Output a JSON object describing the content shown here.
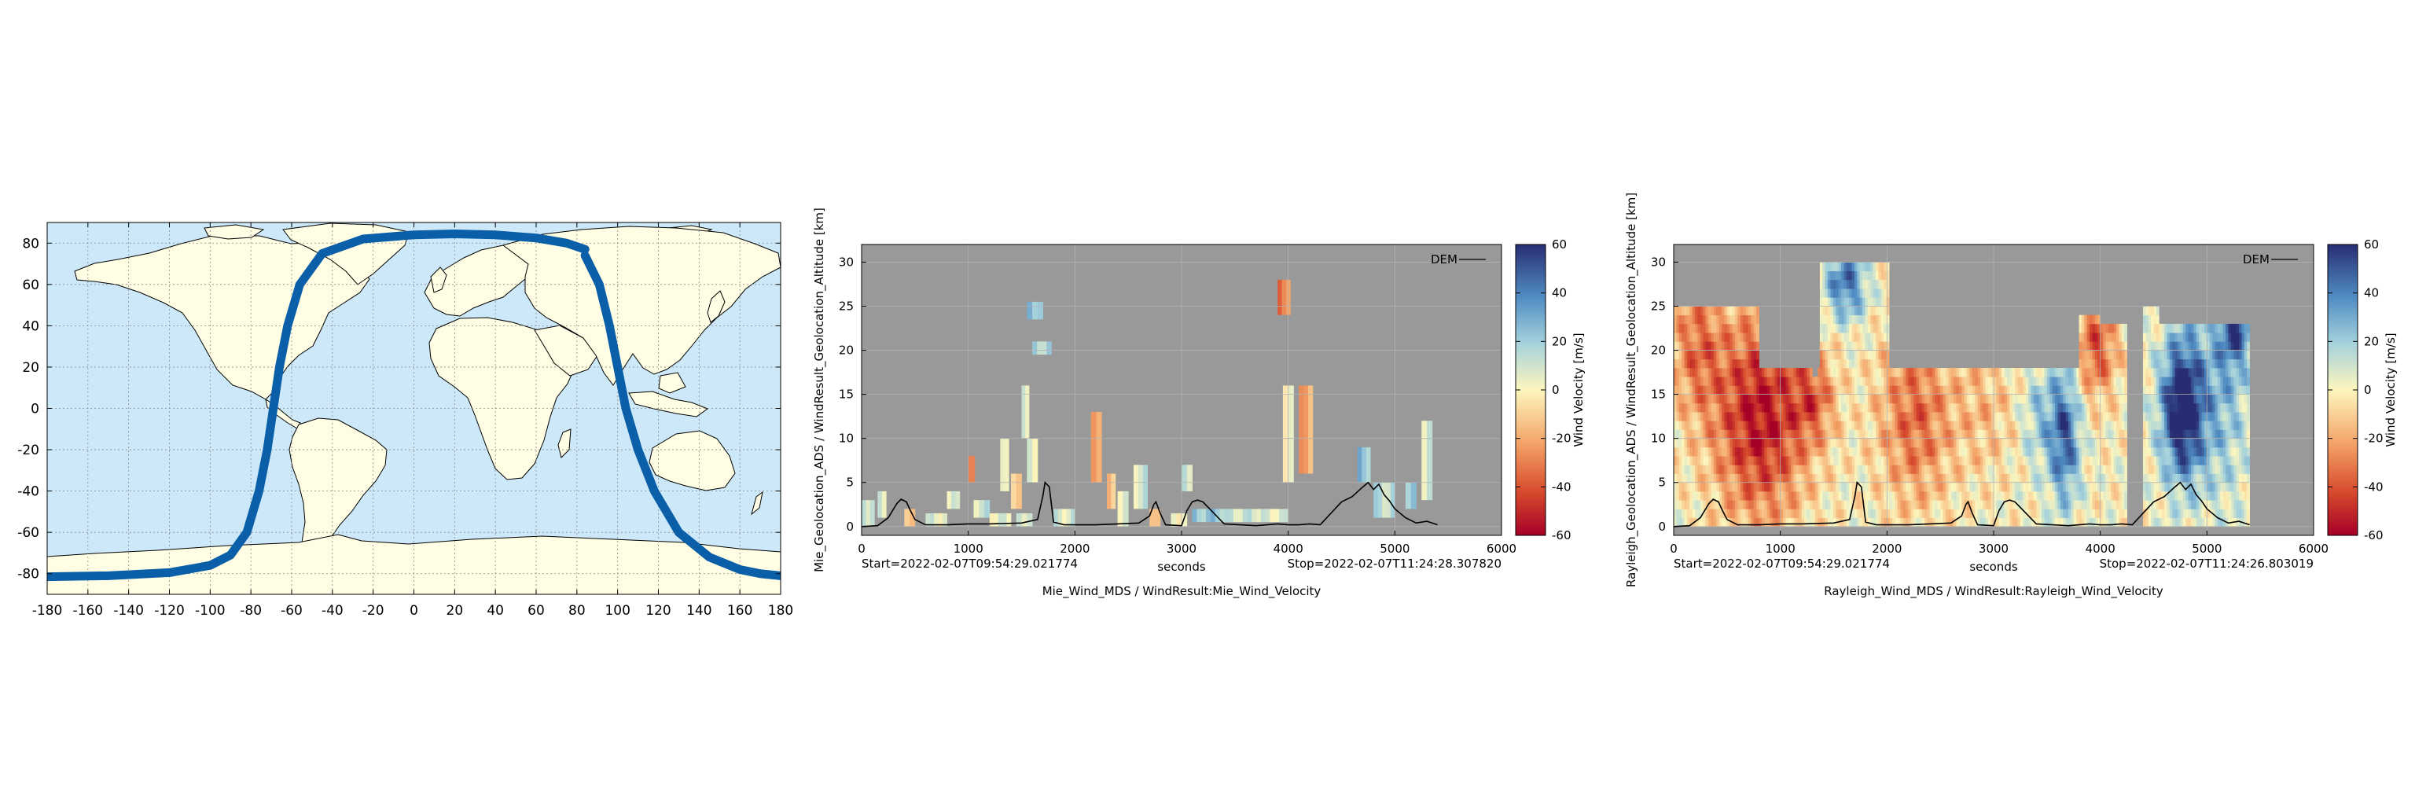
{
  "colors": {
    "ocean": "#cde9f9",
    "land": "#fffde3",
    "track": "#0a5fa8",
    "no_data": "#999999",
    "dem_line": "#000000"
  },
  "chart_data": [
    {
      "type": "scatter",
      "name": "ground-track-map",
      "title": "",
      "xlabel": "",
      "ylabel": "",
      "xlim": [
        -180,
        180
      ],
      "ylim": [
        -90,
        90
      ],
      "grid": true,
      "x_ticks": [
        -180,
        -160,
        -140,
        -120,
        -100,
        -80,
        -60,
        -40,
        -20,
        0,
        20,
        40,
        60,
        80,
        100,
        120,
        140,
        160,
        180
      ],
      "y_ticks": [
        80,
        60,
        40,
        20,
        0,
        -20,
        -40,
        -60,
        -80
      ],
      "series": [
        {
          "x": [
            -180,
            -150,
            -120,
            -100,
            -90,
            -82,
            -76,
            -72,
            -69,
            -66,
            -62,
            -56,
            -45,
            -25,
            0,
            20,
            40,
            60,
            75,
            84
          ],
          "y": [
            -81.5,
            -81,
            -79.5,
            -76,
            -71,
            -60,
            -40,
            -20,
            0,
            20,
            40,
            60,
            75,
            82,
            84,
            84.5,
            84,
            82.5,
            80,
            77
          ]
        },
        {
          "x": [
            84,
            91,
            96,
            100,
            104,
            110,
            118,
            130,
            145,
            160,
            170,
            180
          ],
          "y": [
            74,
            60,
            40,
            20,
            0,
            -20,
            -40,
            -60,
            -72,
            -78,
            -80,
            -81
          ]
        }
      ]
    },
    {
      "type": "heatmap",
      "name": "mie-wind",
      "title": "Mie_Wind_MDS / WindResult:Mie_Wind_Velocity",
      "xlabel": "seconds",
      "ylabel": "Mie_Geolocation_ADS / WindResult_Geolocation_Altitude [km]",
      "colorbar_label": "Wind Velocity [m/s]",
      "start_label": "Start=2022-02-07T09:54:29.021774",
      "stop_label": "Stop=2022-02-07T11:24:28.307820",
      "legend": "DEM",
      "xlim": [
        0,
        6000
      ],
      "ylim": [
        -1,
        32
      ],
      "x_ticks": [
        0,
        1000,
        2000,
        3000,
        4000,
        5000,
        6000
      ],
      "y_ticks": [
        0,
        5,
        10,
        15,
        20,
        25,
        30
      ],
      "clim": [
        -60,
        60
      ],
      "cbar_ticks": [
        60,
        40,
        20,
        0,
        -20,
        -40,
        -60
      ],
      "dem_x": [
        0,
        150,
        250,
        330,
        370,
        420,
        450,
        500,
        600,
        800,
        1000,
        1200,
        1500,
        1650,
        1700,
        1720,
        1760,
        1800,
        1900,
        2200,
        2400,
        2600,
        2700,
        2740,
        2760,
        2800,
        2850,
        3000,
        3050,
        3100,
        3150,
        3200,
        3400,
        3700,
        3900,
        4000,
        4100,
        4200,
        4300,
        4400,
        4500,
        4600,
        4700,
        4750,
        4800,
        4850,
        4900,
        4950,
        5000,
        5100,
        5200,
        5300,
        5400
      ],
      "dem_y": [
        0,
        0.1,
        1,
        2.6,
        3.1,
        2.8,
        2.0,
        0.8,
        0.2,
        0.2,
        0.3,
        0.3,
        0.4,
        0.8,
        3.5,
        5.0,
        4.5,
        0.5,
        0.2,
        0.2,
        0.3,
        0.4,
        1.2,
        2.5,
        2.8,
        1.5,
        0.2,
        0.1,
        1.8,
        2.8,
        3.0,
        2.8,
        0.3,
        0.1,
        0.3,
        0.2,
        0.2,
        0.3,
        0.2,
        1.5,
        2.8,
        3.4,
        4.5,
        5.0,
        4.2,
        4.8,
        3.6,
        2.9,
        2.0,
        1.0,
        0.4,
        0.6,
        0.2
      ],
      "cells": [
        {
          "t": 0,
          "z": 0,
          "dt": 120,
          "dz": 3,
          "v": 14
        },
        {
          "t": 150,
          "z": 1,
          "dt": 80,
          "dz": 3,
          "v": 8
        },
        {
          "t": 400,
          "z": 0,
          "dt": 100,
          "dz": 2,
          "v": -18
        },
        {
          "t": 600,
          "z": 0,
          "dt": 200,
          "dz": 1.5,
          "v": 6
        },
        {
          "t": 800,
          "z": 2,
          "dt": 120,
          "dz": 2,
          "v": 4
        },
        {
          "t": 1000,
          "z": 5,
          "dt": 60,
          "dz": 3,
          "v": -22
        },
        {
          "t": 1050,
          "z": 1,
          "dt": 150,
          "dz": 2,
          "v": 10
        },
        {
          "t": 1200,
          "z": 0,
          "dt": 200,
          "dz": 1.5,
          "v": 5
        },
        {
          "t": 1300,
          "z": 4,
          "dt": 80,
          "dz": 6,
          "v": 9
        },
        {
          "t": 1400,
          "z": 2,
          "dt": 100,
          "dz": 4,
          "v": -6
        },
        {
          "t": 1500,
          "z": 10,
          "dt": 70,
          "dz": 6,
          "v": 10
        },
        {
          "t": 1550,
          "z": 5,
          "dt": 100,
          "dz": 5,
          "v": 6
        },
        {
          "t": 1450,
          "z": 0,
          "dt": 150,
          "dz": 1.5,
          "v": 12
        },
        {
          "t": 1550,
          "z": 23.5,
          "dt": 150,
          "dz": 2,
          "v": 26
        },
        {
          "t": 1600,
          "z": 19.5,
          "dt": 180,
          "dz": 1.5,
          "v": 18
        },
        {
          "t": 1800,
          "z": 0,
          "dt": 200,
          "dz": 2,
          "v": 8
        },
        {
          "t": 2150,
          "z": 5,
          "dt": 100,
          "dz": 8,
          "v": -26
        },
        {
          "t": 2300,
          "z": 2,
          "dt": 80,
          "dz": 4,
          "v": -15
        },
        {
          "t": 2400,
          "z": 0,
          "dt": 100,
          "dz": 4,
          "v": 6
        },
        {
          "t": 2550,
          "z": 2,
          "dt": 130,
          "dz": 5,
          "v": 9
        },
        {
          "t": 2700,
          "z": 0,
          "dt": 100,
          "dz": 2,
          "v": -8
        },
        {
          "t": 2900,
          "z": 0,
          "dt": 150,
          "dz": 1.5,
          "v": 4
        },
        {
          "t": 3000,
          "z": 4,
          "dt": 100,
          "dz": 3,
          "v": 12
        },
        {
          "t": 3100,
          "z": 0.5,
          "dt": 300,
          "dz": 1.5,
          "v": 22
        },
        {
          "t": 3400,
          "z": 0.5,
          "dt": 300,
          "dz": 1.5,
          "v": 10
        },
        {
          "t": 3700,
          "z": 0.5,
          "dt": 300,
          "dz": 1.5,
          "v": 6
        },
        {
          "t": 3900,
          "z": 24,
          "dt": 120,
          "dz": 4,
          "v": -30
        },
        {
          "t": 3950,
          "z": 5,
          "dt": 100,
          "dz": 11,
          "v": 4
        },
        {
          "t": 4100,
          "z": 6,
          "dt": 130,
          "dz": 10,
          "v": -20
        },
        {
          "t": 4650,
          "z": 5,
          "dt": 120,
          "dz": 4,
          "v": 24
        },
        {
          "t": 4800,
          "z": 1,
          "dt": 200,
          "dz": 4,
          "v": 14
        },
        {
          "t": 5100,
          "z": 2,
          "dt": 100,
          "dz": 3,
          "v": 18
        },
        {
          "t": 5250,
          "z": 3,
          "dt": 100,
          "dz": 9,
          "v": 8
        }
      ]
    },
    {
      "type": "heatmap",
      "name": "rayleigh-wind",
      "title": "Rayleigh_Wind_MDS / WindResult:Rayleigh_Wind_Velocity",
      "xlabel": "seconds",
      "ylabel": "Rayleigh_Geolocation_ADS / WindResult_Geolocation_Altitude [km]",
      "colorbar_label": "Wind Velocity [m/s]",
      "start_label": "Start=2022-02-07T09:54:29.021774",
      "stop_label": "Stop=2022-02-07T11:24:26.803019",
      "legend": "DEM",
      "xlim": [
        0,
        6000
      ],
      "ylim": [
        -1,
        32
      ],
      "x_ticks": [
        0,
        1000,
        2000,
        3000,
        4000,
        5000,
        6000
      ],
      "y_ticks": [
        0,
        5,
        10,
        15,
        20,
        25,
        30
      ],
      "clim": [
        -60,
        60
      ],
      "cbar_ticks": [
        60,
        40,
        20,
        0,
        -20,
        -40,
        -60
      ],
      "dem_x": [
        0,
        150,
        250,
        330,
        370,
        420,
        450,
        500,
        600,
        800,
        1000,
        1200,
        1500,
        1650,
        1700,
        1720,
        1760,
        1800,
        1900,
        2200,
        2400,
        2600,
        2700,
        2740,
        2760,
        2800,
        2850,
        3000,
        3050,
        3100,
        3150,
        3200,
        3400,
        3700,
        3900,
        4000,
        4100,
        4200,
        4300,
        4400,
        4500,
        4600,
        4700,
        4750,
        4800,
        4850,
        4900,
        4950,
        5000,
        5100,
        5200,
        5300,
        5400
      ],
      "dem_y": [
        0,
        0.1,
        1,
        2.6,
        3.1,
        2.8,
        2.0,
        0.8,
        0.2,
        0.2,
        0.3,
        0.3,
        0.4,
        0.8,
        3.5,
        5.0,
        4.5,
        0.5,
        0.2,
        0.2,
        0.3,
        0.4,
        1.2,
        2.5,
        2.8,
        1.5,
        0.2,
        0.1,
        1.8,
        2.8,
        3.0,
        2.8,
        0.3,
        0.1,
        0.3,
        0.2,
        0.2,
        0.3,
        0.2,
        1.5,
        2.8,
        3.4,
        4.5,
        5.0,
        4.2,
        4.8,
        3.6,
        2.9,
        2.0,
        1.0,
        0.4,
        0.6,
        0.2
      ],
      "coverage": [
        {
          "t0": 0,
          "t1": 400,
          "top": 25
        },
        {
          "t0": 400,
          "t1": 800,
          "top": 25
        },
        {
          "t0": 800,
          "t1": 1300,
          "top": 18
        },
        {
          "t0": 1300,
          "t1": 1350,
          "top": 17
        },
        {
          "t0": 1350,
          "t1": 1600,
          "top": 18
        },
        {
          "t0": 1600,
          "t1": 2100,
          "top": 18
        },
        {
          "t0": 1370,
          "t1": 2000,
          "top": 30
        },
        {
          "t0": 2100,
          "t1": 2600,
          "top": 18
        },
        {
          "t0": 2600,
          "t1": 3200,
          "top": 18
        },
        {
          "t0": 3200,
          "t1": 3800,
          "top": 18
        },
        {
          "t0": 3800,
          "t1": 4000,
          "top": 24
        },
        {
          "t0": 4000,
          "t1": 4250,
          "top": 23
        },
        {
          "t0": 4400,
          "t1": 4550,
          "top": 25
        },
        {
          "t0": 4550,
          "t1": 5400,
          "top": 23
        }
      ],
      "wind_field": [
        {
          "t": 800,
          "z": 12,
          "rt": 450,
          "rz": 12,
          "v": -55
        },
        {
          "t": 200,
          "z": 20,
          "rt": 250,
          "rz": 8,
          "v": -30
        },
        {
          "t": 1300,
          "z": 14,
          "rt": 200,
          "rz": 5,
          "v": -28
        },
        {
          "t": 1600,
          "z": 27,
          "rt": 200,
          "rz": 4,
          "v": 45
        },
        {
          "t": 2250,
          "z": 12,
          "rt": 350,
          "rz": 10,
          "v": -35
        },
        {
          "t": 2900,
          "z": 13,
          "rt": 300,
          "rz": 8,
          "v": -15
        },
        {
          "t": 3650,
          "z": 10,
          "rt": 150,
          "rz": 8,
          "v": 50
        },
        {
          "t": 3400,
          "z": 12,
          "rt": 150,
          "rz": 6,
          "v": 20
        },
        {
          "t": 3950,
          "z": 20,
          "rt": 200,
          "rz": 6,
          "v": -40
        },
        {
          "t": 4750,
          "z": 13,
          "rt": 200,
          "rz": 8,
          "v": 70
        },
        {
          "t": 5100,
          "z": 14,
          "rt": 300,
          "rz": 12,
          "v": 25
        },
        {
          "t": 5250,
          "z": 23,
          "rt": 150,
          "rz": 5,
          "v": 50
        }
      ]
    }
  ]
}
